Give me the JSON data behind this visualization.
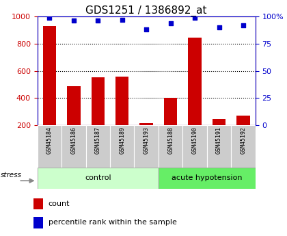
{
  "title": "GDS1251 / 1386892_at",
  "categories": [
    "GSM45184",
    "GSM45186",
    "GSM45187",
    "GSM45189",
    "GSM45193",
    "GSM45188",
    "GSM45190",
    "GSM45191",
    "GSM45192"
  ],
  "counts": [
    930,
    485,
    550,
    555,
    215,
    400,
    845,
    245,
    270
  ],
  "percentiles": [
    99,
    96,
    96,
    97,
    88,
    94,
    99,
    90,
    92
  ],
  "bar_color": "#cc0000",
  "dot_color": "#0000cc",
  "bar_bottom": 200,
  "ylim_left": [
    200,
    1000
  ],
  "ylim_right": [
    0,
    100
  ],
  "yticks_left": [
    200,
    400,
    600,
    800,
    1000
  ],
  "yticks_right": [
    0,
    25,
    50,
    75,
    100
  ],
  "yticklabels_right": [
    "0",
    "25",
    "50",
    "75",
    "100%"
  ],
  "groups": [
    {
      "label": "control",
      "indices": [
        0,
        1,
        2,
        3,
        4
      ],
      "color": "#ccffcc"
    },
    {
      "label": "acute hypotension",
      "indices": [
        5,
        6,
        7,
        8
      ],
      "color": "#66ee66"
    }
  ],
  "group_row_color": "#cccccc",
  "stress_label": "stress",
  "legend_count_label": "count",
  "legend_pct_label": "percentile rank within the sample",
  "title_fontsize": 11,
  "tick_fontsize": 8,
  "left_axis_color": "#cc0000",
  "right_axis_color": "#0000cc"
}
